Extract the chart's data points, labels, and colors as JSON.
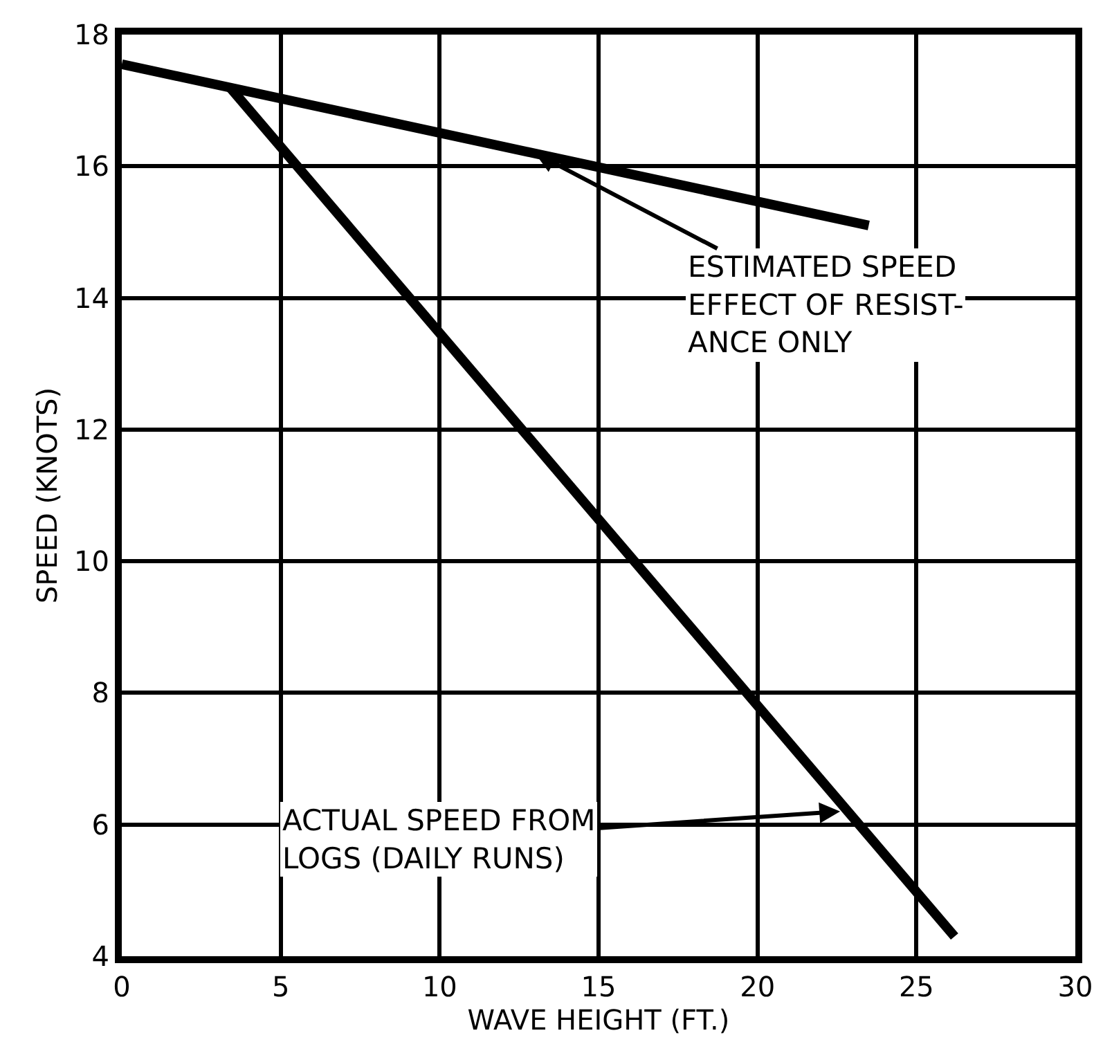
{
  "chart_data": {
    "type": "line",
    "xlabel": "WAVE HEIGHT (FT.)",
    "ylabel": "SPEED (KNOTS)",
    "xlim": [
      0,
      30
    ],
    "xticks": [
      0,
      5,
      10,
      15,
      20,
      25,
      30
    ],
    "ylim": [
      4,
      18
    ],
    "yticks": [
      4,
      6,
      8,
      10,
      12,
      14,
      16,
      18
    ],
    "grid": true,
    "line_style": "solid",
    "series": [
      {
        "color": "#000000",
        "x": [
          0,
          23.5
        ],
        "values": [
          17.55,
          15.1
        ]
      },
      {
        "color": "#000000",
        "x": [
          3.4,
          26.2
        ],
        "values": [
          17.2,
          4.3
        ]
      }
    ],
    "annotations": [
      {
        "text": "ESTIMATED SPEED\nEFFECT OF RESIST-\nANCE ONLY",
        "x": 13,
        "y": 16.2
      },
      {
        "text": "ACTUAL SPEED FROM\nLOGS (DAILY RUNS)",
        "x": 22.6,
        "y": 6.2
      }
    ]
  }
}
